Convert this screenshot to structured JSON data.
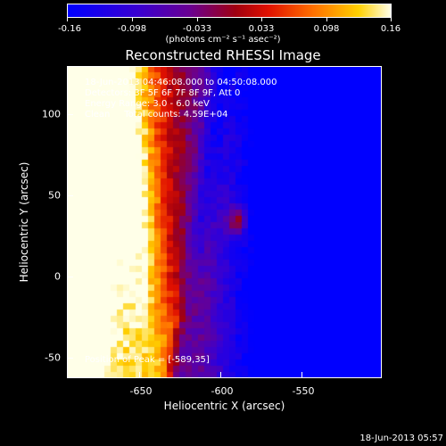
{
  "colorbar": {
    "ticks": [
      "-0.16",
      "-0.098",
      "-0.033",
      "0.033",
      "0.098",
      "0.16"
    ],
    "units": "(photons cm⁻² s⁻¹ asec⁻²)"
  },
  "title": "Reconstructed RHESSI Image",
  "info": {
    "line1": "18-Jun-2013 04:46:08.000 to 04:50:08.000",
    "line2": "Detectors: 3F 5F 6F 7F 8F 9F, Att 0",
    "line3": "Energy Range: 3.0 - 6.0 keV",
    "line4": "Clean     Total counts: 4.59E+04",
    "peak": "Position of Peak = [-589,35]"
  },
  "axes": {
    "xlabel": "Heliocentric X (arcsec)",
    "ylabel": "Heliocentric Y (arcsec)",
    "xticks": [
      "-650",
      "-600",
      "-550"
    ],
    "yticks": [
      "100",
      "50",
      "0",
      "-50"
    ]
  },
  "footer": "18-Jun-2013 05:57",
  "chart_data": {
    "type": "heatmap",
    "title": "Reconstructed RHESSI Image",
    "xlabel": "Heliocentric X (arcsec)",
    "ylabel": "Heliocentric Y (arcsec)",
    "xlim": [
      -693,
      -500
    ],
    "ylim": [
      -62,
      130
    ],
    "clim": [
      -0.16,
      0.16
    ],
    "colormap": "blue-purple-red-orange-yellow-white",
    "peak": [
      -589,
      35
    ],
    "features": [
      {
        "x": -644,
        "y": 60,
        "level": 0.13
      },
      {
        "x": -589,
        "y": 35,
        "level": 0.16
      },
      {
        "x": -680,
        "y": 20,
        "level": 0.07
      },
      {
        "x": -540,
        "y": 90,
        "level": -0.12
      }
    ]
  }
}
